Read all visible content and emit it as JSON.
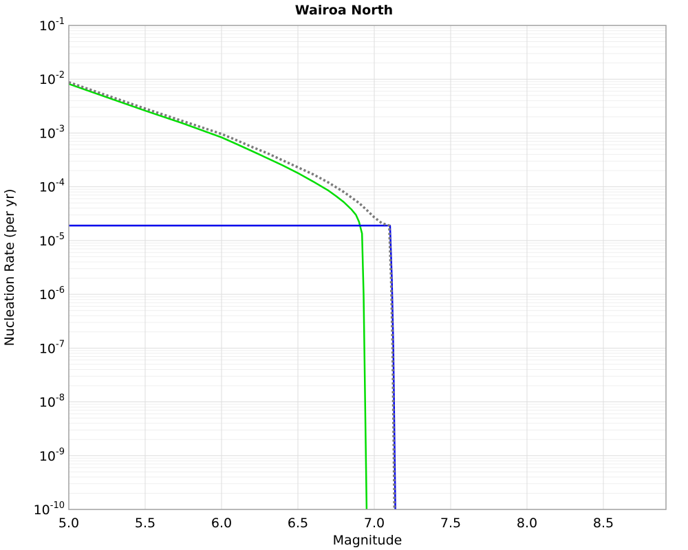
{
  "title": "Wairoa North",
  "chart_data": {
    "type": "line",
    "title": "Wairoa North",
    "xlabel": "Magnitude",
    "ylabel": "Nucleation Rate (per yr)",
    "xlim": [
      5.0,
      8.91
    ],
    "ylim": [
      1e-10,
      0.1
    ],
    "ylog_top_exp": -1,
    "ylog_bottom_exp": -10,
    "x_ticks": [
      "5.0",
      "5.5",
      "6.0",
      "6.5",
      "7.0",
      "7.5",
      "8.0",
      "8.5"
    ],
    "x_tick_values": [
      5.0,
      5.5,
      6.0,
      6.5,
      7.0,
      7.5,
      8.0,
      8.5
    ],
    "y_tick_base": "10",
    "y_tick_exponents": [
      "-1",
      "-2",
      "-3",
      "-4",
      "-5",
      "-6",
      "-7",
      "-8",
      "-9",
      "-10"
    ],
    "grid": true,
    "legend": "none",
    "colors": {
      "green_series": "#00dd00",
      "dotted_series": "#7a7a7a",
      "blue_series": "#0000ee",
      "grid_major": "#dedede",
      "grid_minor": "#efefef",
      "spine": "#a0a0a0",
      "text": "#000000",
      "background": "#ffffff"
    },
    "series": [
      {
        "name": "green-solid-mfd",
        "color_key": "green_series",
        "style": "solid",
        "width": 2.5,
        "z_order": 1,
        "points": [
          [
            5.0,
            0.0082
          ],
          [
            5.25,
            0.0046
          ],
          [
            5.5,
            0.0026
          ],
          [
            5.75,
            0.0015
          ],
          [
            6.0,
            0.00083
          ],
          [
            6.1,
            0.00062
          ],
          [
            6.2,
            0.00046
          ],
          [
            6.3,
            0.00034
          ],
          [
            6.4,
            0.00025
          ],
          [
            6.5,
            0.00018
          ],
          [
            6.6,
            0.000125
          ],
          [
            6.7,
            8.5e-05
          ],
          [
            6.75,
            6.7e-05
          ],
          [
            6.8,
            5.2e-05
          ],
          [
            6.85,
            3.8e-05
          ],
          [
            6.88,
            3e-05
          ],
          [
            6.9,
            2.24e-05
          ],
          [
            6.92,
            1.35e-05
          ],
          [
            6.93,
            1e-06
          ],
          [
            6.94,
            1e-08
          ],
          [
            6.95,
            1e-10
          ]
        ]
      },
      {
        "name": "gray-dotted-total-mfd",
        "color_key": "dotted_series",
        "style": "dotted",
        "width": 3.5,
        "z_order": 3,
        "points": [
          [
            5.0,
            0.0088
          ],
          [
            5.25,
            0.005
          ],
          [
            5.5,
            0.00285
          ],
          [
            5.75,
            0.00165
          ],
          [
            6.0,
            0.00096
          ],
          [
            6.1,
            0.00073
          ],
          [
            6.2,
            0.00055
          ],
          [
            6.3,
            0.00042
          ],
          [
            6.4,
            0.00031
          ],
          [
            6.5,
            0.00023
          ],
          [
            6.6,
            0.00017
          ],
          [
            6.7,
            0.00012
          ],
          [
            6.8,
            8e-05
          ],
          [
            6.9,
            5e-05
          ],
          [
            6.95,
            3.7e-05
          ],
          [
            7.0,
            2.7e-05
          ],
          [
            7.05,
            2.1e-05
          ],
          [
            7.098,
            1.9e-05
          ],
          [
            7.11,
            2e-06
          ],
          [
            7.12,
            1e-07
          ],
          [
            7.132,
            1e-10
          ]
        ]
      },
      {
        "name": "blue-solid-characteristic",
        "color_key": "blue_series",
        "style": "solid",
        "width": 2.5,
        "z_order": 2,
        "points": [
          [
            5.0,
            1.9e-05
          ],
          [
            7.103,
            1.9e-05
          ],
          [
            7.115,
            2e-06
          ],
          [
            7.125,
            1e-07
          ],
          [
            7.138,
            1e-10
          ]
        ]
      }
    ]
  }
}
